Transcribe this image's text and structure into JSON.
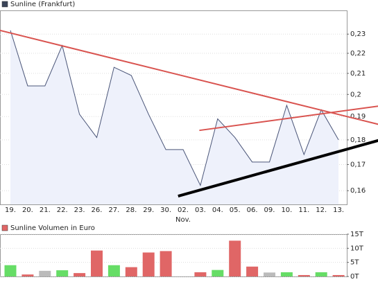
{
  "chart_data": [
    {
      "type": "line",
      "title": "Sunline (Frankfurt)",
      "legend_color": "#3a4458",
      "categories": [
        "19.",
        "20.",
        "21.",
        "22.",
        "23.",
        "26.",
        "27.",
        "28.",
        "29.",
        "30.",
        "02.",
        "03.",
        "04.",
        "05.",
        "06.",
        "09.",
        "10.",
        "11.",
        "12.",
        "13."
      ],
      "annotations": [
        {
          "text": "Nov.",
          "category": 10
        }
      ],
      "series": [
        {
          "name": "Sunline (Frankfurt)",
          "color": "#4a5578",
          "fill": "#eef1fb",
          "values": [
            0.232,
            0.204,
            0.204,
            0.224,
            0.191,
            0.181,
            0.213,
            0.209,
            0.191,
            0.176,
            0.176,
            0.162,
            0.189,
            0.181,
            0.171,
            0.171,
            0.195,
            0.174,
            0.193,
            0.18
          ]
        }
      ],
      "trendlines": [
        {
          "color": "#d9534f",
          "x": [
            -0.61,
            21.63
          ],
          "values": [
            0.232,
            0.186
          ]
        },
        {
          "color": "#d9534f",
          "x": [
            10.94,
            21.63
          ],
          "values": [
            0.184,
            0.195
          ]
        },
        {
          "color": "#000000",
          "x": [
            9.71,
            21.43
          ],
          "values": [
            0.158,
            0.18
          ]
        }
      ],
      "log_scale": true,
      "grid": true,
      "ylim": [
        0.155,
        0.243
      ],
      "yticks": [
        {
          "value": 0.16,
          "label": "0,16"
        },
        {
          "value": 0.17,
          "label": "0,17"
        },
        {
          "value": 0.18,
          "label": "0,18"
        },
        {
          "value": 0.19,
          "label": "0,19"
        },
        {
          "value": 0.2,
          "label": "0,2"
        },
        {
          "value": 0.21,
          "label": "0,21"
        },
        {
          "value": 0.22,
          "label": "0,22"
        },
        {
          "value": 0.23,
          "label": "0,23"
        }
      ]
    },
    {
      "type": "bar",
      "title": "Sunline Volumen in Euro",
      "legend_color": "#e06666",
      "values": [
        4000,
        700,
        2000,
        2200,
        1200,
        9200,
        4000,
        3300,
        8500,
        9000,
        0,
        1500,
        2300,
        12700,
        3500,
        1400,
        1500,
        500,
        1500,
        500
      ],
      "colors": [
        "#66dd66",
        "#e06666",
        "#bbbbbb",
        "#66dd66",
        "#e06666",
        "#e06666",
        "#66dd66",
        "#e06666",
        "#e06666",
        "#e06666",
        "#e06666",
        "#e06666",
        "#66dd66",
        "#e06666",
        "#e06666",
        "#bbbbbb",
        "#66dd66",
        "#e06666",
        "#66dd66",
        "#e06666"
      ],
      "grid": true,
      "ylim": [
        0,
        15000
      ],
      "yticks": [
        {
          "value": 0,
          "label": "0T"
        },
        {
          "value": 5000,
          "label": "5T"
        },
        {
          "value": 10000,
          "label": "10T"
        },
        {
          "value": 15000,
          "label": "15T"
        }
      ]
    }
  ]
}
